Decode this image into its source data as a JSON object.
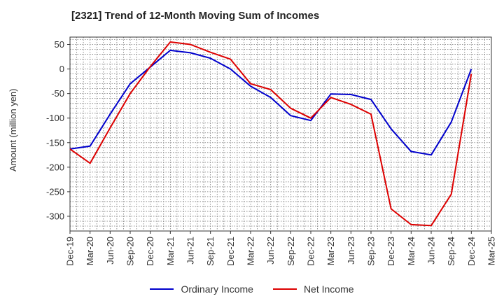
{
  "chart_data": {
    "type": "line",
    "title": "[2321]  Trend of 12-Month Moving Sum of Incomes",
    "xlabel": "",
    "ylabel": "Amount (million yen)",
    "ylim": [
      -330,
      65
    ],
    "yticks": [
      50,
      0,
      -50,
      -100,
      -150,
      -200,
      -250,
      -300
    ],
    "categories": [
      "Dec-19",
      "Mar-20",
      "Jun-20",
      "Sep-20",
      "Dec-20",
      "Mar-21",
      "Jun-21",
      "Sep-21",
      "Dec-21",
      "Mar-22",
      "Jun-22",
      "Sep-22",
      "Dec-22",
      "Mar-23",
      "Jun-23",
      "Sep-23",
      "Dec-23",
      "Mar-24",
      "Jun-24",
      "Sep-24",
      "Dec-24",
      "Mar-25"
    ],
    "series": [
      {
        "name": "Ordinary Income",
        "color": "#0000cc",
        "values": [
          -163,
          -157,
          -92,
          -30,
          4,
          38,
          33,
          22,
          0,
          -35,
          -58,
          -95,
          -105,
          -51,
          -52,
          -62,
          -122,
          -168,
          -175,
          -108,
          0,
          null
        ]
      },
      {
        "name": "Net Income",
        "color": "#dd0000",
        "values": [
          -163,
          -192,
          -120,
          -50,
          5,
          55,
          50,
          34,
          20,
          -30,
          -42,
          -80,
          -100,
          -58,
          -72,
          -92,
          -285,
          -317,
          -319,
          -255,
          -10,
          null
        ]
      }
    ],
    "grid": true,
    "legend_position": "bottom-center"
  }
}
